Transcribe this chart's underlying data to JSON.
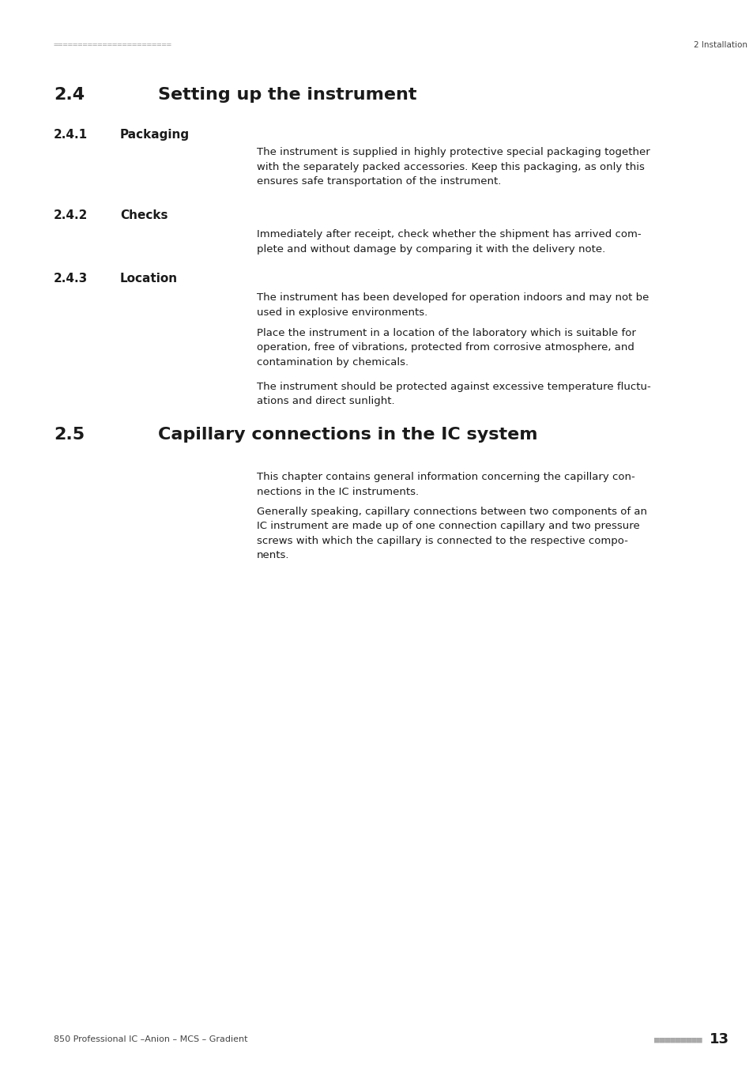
{
  "bg_color": "#ffffff",
  "header_line_color": "#aaaaaa",
  "header_left_text": "========================",
  "header_right_text": "2 Installation",
  "header_text_color": "#aaaaaa",
  "header_right_color": "#444444",
  "footer_left_text": "850 Professional IC –Anion – MCS – Gradient",
  "footer_right_squares": "■■■■■■■■■",
  "footer_right_num": "13",
  "footer_text_color": "#444444",
  "footer_squares_color": "#aaaaaa",
  "section_24_number": "2.4",
  "section_24_title": "Setting up the instrument",
  "section_241_number": "2.4.1",
  "section_241_title": "Packaging",
  "section_241_body": "The instrument is supplied in highly protective special packaging together\nwith the separately packed accessories. Keep this packaging, as only this\nensures safe transportation of the instrument.",
  "section_242_number": "2.4.2",
  "section_242_title": "Checks",
  "section_242_body": "Immediately after receipt, check whether the shipment has arrived com-\nplete and without damage by comparing it with the delivery note.",
  "section_243_number": "2.4.3",
  "section_243_title": "Location",
  "section_243_body1": "The instrument has been developed for operation indoors and may not be\nused in explosive environments.",
  "section_243_body2": "Place the instrument in a location of the laboratory which is suitable for\noperation, free of vibrations, protected from corrosive atmosphere, and\ncontamination by chemicals.",
  "section_243_body3": "The instrument should be protected against excessive temperature fluctu-\nations and direct sunlight.",
  "section_25_number": "2.5",
  "section_25_title": "Capillary connections in the IC system",
  "section_25_body1": "This chapter contains general information concerning the capillary con-\nnections in the IC instruments.",
  "section_25_body2": "Generally speaking, capillary connections between two components of an\nIC instrument are made up of one connection capillary and two pressure\nscrews with which the capillary is connected to the respective compo-\nnents.",
  "title_color": "#1a1a1a",
  "body_color": "#1a1a1a",
  "number_color": "#1a1a1a",
  "main_title_fontsize": 16,
  "sub_title_fontsize": 11,
  "body_fontsize": 9.5,
  "header_fontsize": 7.5,
  "footer_fontsize": 8
}
